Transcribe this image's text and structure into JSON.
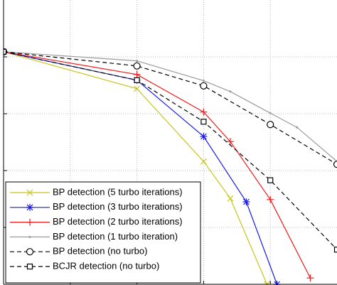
{
  "chart_data": {
    "type": "line",
    "xlim": [
      0,
      5
    ],
    "ylim": [
      0,
      5
    ],
    "xticks": [
      1,
      2,
      3,
      4
    ],
    "yticks": [
      1,
      2,
      3,
      4
    ],
    "grid": true,
    "legend": "lower left",
    "series": [
      {
        "name": "BP detection (5 turbo iterations)",
        "color": "#c8c41c",
        "marker": "x",
        "dash": false,
        "x": [
          0,
          2,
          3,
          3.4,
          3.95
        ],
        "values": [
          4.09,
          3.44,
          2.16,
          1.51,
          0
        ]
      },
      {
        "name": "BP detection (3 turbo iterations)",
        "color": "#1a1ae6",
        "marker": "star",
        "dash": false,
        "x": [
          0,
          2,
          3,
          3.64,
          4.1
        ],
        "values": [
          4.09,
          3.59,
          2.6,
          1.45,
          0
        ]
      },
      {
        "name": "BP detection (2 turbo iterations)",
        "color": "#ee1c1c",
        "marker": "plus",
        "dash": false,
        "x": [
          0,
          2,
          3,
          3.4,
          4,
          4.6
        ],
        "values": [
          4.09,
          3.69,
          3.03,
          2.51,
          1.49,
          0.11
        ]
      },
      {
        "name": "BP detection (1 turbo iteration)",
        "color": "#9a9a9a",
        "marker": "dot",
        "dash": false,
        "x": [
          0,
          2,
          3,
          3.4,
          4,
          4.4,
          5
        ],
        "values": [
          4.09,
          3.93,
          3.58,
          3.39,
          3.01,
          2.76,
          2.16
        ]
      },
      {
        "name": "BP detection (no turbo)",
        "color": "#000000",
        "marker": "circle",
        "dash": true,
        "x": [
          0,
          2,
          3,
          4,
          5
        ],
        "values": [
          4.09,
          3.84,
          3.49,
          2.81,
          2.11
        ]
      },
      {
        "name": "BCJR detection (no turbo)",
        "color": "#000000",
        "marker": "square",
        "dash": true,
        "x": [
          0,
          2,
          3,
          4,
          5
        ],
        "values": [
          4.09,
          3.59,
          2.86,
          1.83,
          0.61
        ]
      }
    ]
  }
}
